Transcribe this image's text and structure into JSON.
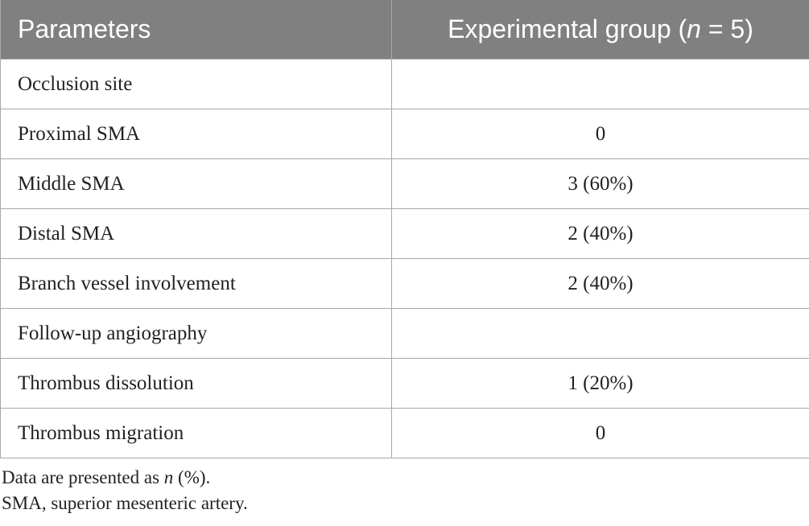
{
  "table": {
    "header": {
      "parameters": "Parameters",
      "group_prefix": "Experimental group (",
      "group_n": "n",
      "group_suffix": " = 5)"
    },
    "rows": [
      {
        "label": "Occlusion site",
        "value": ""
      },
      {
        "label": "Proximal SMA",
        "value": "0"
      },
      {
        "label": "Middle SMA",
        "value": "3 (60%)"
      },
      {
        "label": "Distal SMA",
        "value": "2 (40%)"
      },
      {
        "label": "Branch vessel involvement",
        "value": "2 (40%)"
      },
      {
        "label": "Follow-up angiography",
        "value": ""
      },
      {
        "label": "Thrombus dissolution",
        "value": "1 (20%)"
      },
      {
        "label": "Thrombus migration",
        "value": "0"
      }
    ]
  },
  "footnotes": {
    "line1_prefix": "Data are presented as ",
    "line1_n": "n",
    "line1_suffix": " (%).",
    "line2": "SMA, superior mesenteric artery."
  }
}
